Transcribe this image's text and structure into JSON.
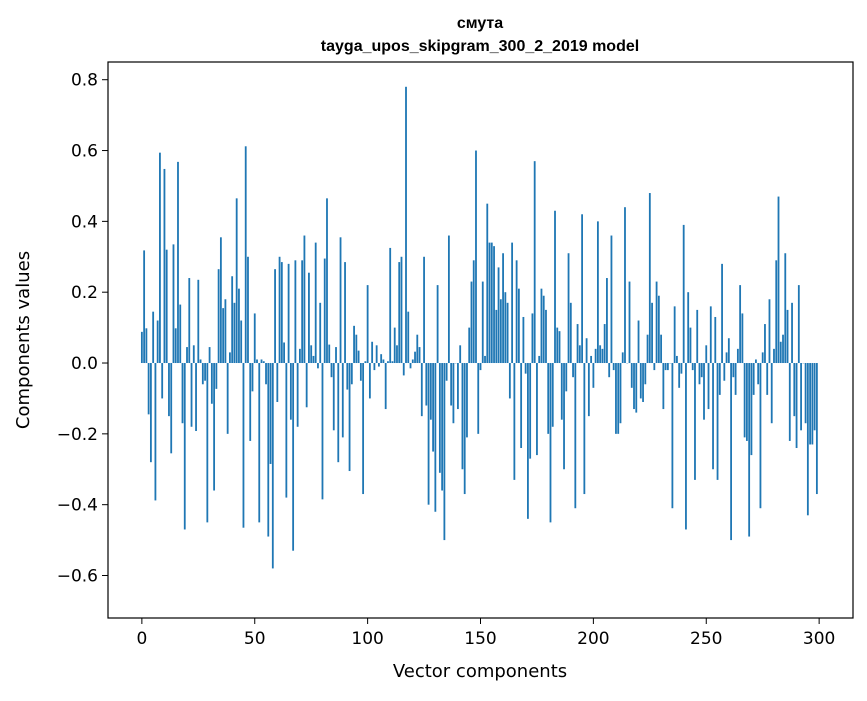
{
  "chart_data": {
    "type": "bar",
    "title": "смута",
    "subtitle": "tayga_upos_skipgram_300_2_2019 model",
    "xlabel": "Vector components",
    "ylabel": "Components values",
    "xlim": [
      -15,
      315
    ],
    "ylim": [
      -0.72,
      0.85
    ],
    "x_ticks": [
      0,
      50,
      100,
      150,
      200,
      250,
      300
    ],
    "x_tick_labels": [
      "0",
      "50",
      "100",
      "150",
      "200",
      "250",
      "300"
    ],
    "y_ticks": [
      0.8,
      0.6,
      0.4,
      0.2,
      0.0,
      -0.2,
      -0.4,
      -0.6
    ],
    "y_tick_labels": [
      "0.8",
      "0.6",
      "0.4",
      "0.2",
      "0.0",
      "−0.2",
      "−0.4",
      "−0.6"
    ],
    "grid": false,
    "bar_color": "#1f77b4",
    "series": [
      {
        "values": [
          0.088,
          0.318,
          0.098,
          -0.145,
          -0.28,
          0.145,
          -0.388,
          0.12,
          0.594,
          -0.1,
          0.548,
          0.32,
          -0.15,
          -0.255,
          0.335,
          0.098,
          0.568,
          0.165,
          -0.17,
          -0.47,
          0.045,
          0.24,
          -0.18,
          0.05,
          -0.192,
          0.235,
          0.01,
          -0.06,
          -0.05,
          -0.45,
          0.045,
          -0.115,
          -0.36,
          -0.073,
          0.265,
          0.355,
          0.155,
          0.18,
          -0.2,
          0.03,
          0.245,
          0.17,
          0.465,
          0.21,
          0.12,
          -0.465,
          0.612,
          0.3,
          -0.22,
          -0.08,
          0.14,
          0.01,
          -0.45,
          0.01,
          0.005,
          -0.06,
          -0.49,
          -0.285,
          -0.58,
          0.265,
          -0.11,
          0.3,
          0.285,
          0.058,
          -0.38,
          0.28,
          -0.16,
          -0.53,
          0.29,
          -0.18,
          0.04,
          0.29,
          0.36,
          -0.125,
          0.255,
          0.05,
          0.02,
          0.34,
          -0.015,
          0.17,
          -0.385,
          0.295,
          0.465,
          0.052,
          -0.04,
          -0.19,
          0.045,
          -0.28,
          0.355,
          -0.21,
          0.285,
          -0.075,
          -0.305,
          -0.06,
          0.105,
          0.08,
          0.035,
          -0.05,
          -0.37,
          0.005,
          0.22,
          -0.1,
          0.06,
          -0.02,
          0.05,
          -0.01,
          0.025,
          0.01,
          -0.13,
          0.005,
          0.325,
          0.005,
          0.1,
          0.05,
          0.285,
          0.3,
          -0.035,
          0.78,
          0.145,
          -0.015,
          0.01,
          0.032,
          0.08,
          0.045,
          -0.15,
          0.3,
          -0.12,
          -0.4,
          -0.16,
          -0.25,
          -0.42,
          0.22,
          -0.31,
          -0.36,
          -0.5,
          -0.05,
          0.36,
          -0.12,
          -0.17,
          0.0,
          -0.13,
          0.05,
          -0.3,
          -0.37,
          -0.21,
          0.1,
          0.23,
          0.29,
          0.6,
          -0.2,
          -0.02,
          0.23,
          0.02,
          0.45,
          0.34,
          0.34,
          0.33,
          0.15,
          0.27,
          0.18,
          0.31,
          0.2,
          0.17,
          -0.1,
          0.34,
          -0.33,
          0.29,
          0.21,
          -0.24,
          0.13,
          -0.03,
          -0.44,
          -0.27,
          0.14,
          0.57,
          -0.26,
          0.02,
          0.21,
          0.19,
          0.15,
          -0.2,
          -0.45,
          -0.18,
          0.43,
          0.1,
          0.09,
          -0.16,
          -0.3,
          -0.08,
          0.31,
          0.17,
          -0.04,
          -0.41,
          0.11,
          0.05,
          0.42,
          -0.37,
          0.07,
          -0.15,
          0.02,
          -0.07,
          0.04,
          0.4,
          0.05,
          0.04,
          0.11,
          0.24,
          -0.04,
          0.36,
          -0.02,
          -0.2,
          -0.2,
          -0.17,
          0.03,
          0.44,
          0.0,
          0.23,
          -0.07,
          -0.13,
          -0.14,
          0.12,
          -0.1,
          -0.11,
          -0.06,
          0.08,
          0.48,
          0.17,
          -0.02,
          0.23,
          0.19,
          0.08,
          -0.13,
          -0.02,
          -0.02,
          0.0,
          -0.41,
          0.16,
          0.02,
          -0.07,
          -0.03,
          0.39,
          -0.47,
          0.2,
          0.1,
          -0.02,
          -0.33,
          0.15,
          -0.06,
          -0.04,
          -0.16,
          0.05,
          -0.13,
          0.16,
          -0.3,
          0.13,
          -0.33,
          -0.09,
          0.28,
          -0.05,
          0.03,
          0.07,
          -0.5,
          -0.04,
          -0.09,
          0.04,
          0.22,
          0.14,
          -0.21,
          -0.22,
          -0.49,
          -0.26,
          -0.09,
          0.01,
          -0.06,
          -0.41,
          0.03,
          0.11,
          -0.09,
          0.18,
          -0.17,
          0.04,
          0.29,
          0.47,
          0.06,
          0.08,
          0.31,
          0.15,
          -0.22,
          0.17,
          -0.15,
          -0.24,
          0.22,
          -0.19,
          0.0,
          -0.17,
          -0.43,
          -0.23,
          -0.23,
          -0.19,
          -0.37
        ]
      }
    ]
  }
}
